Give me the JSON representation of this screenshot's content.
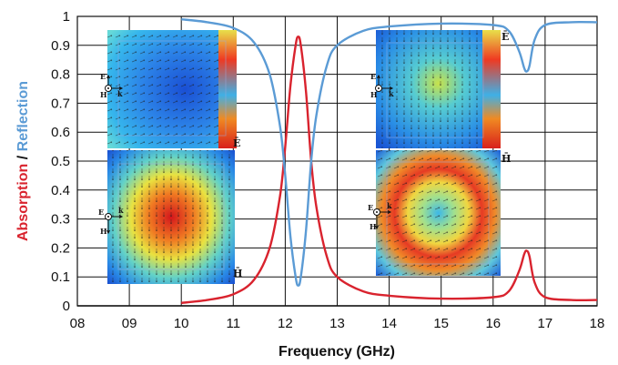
{
  "chart_data": {
    "type": "line",
    "xlabel": "Frequency (GHz)",
    "ylabel_parts": [
      "Absorption",
      " / ",
      "Reflection"
    ],
    "x_ticks": [
      "08",
      "09",
      "10",
      "11",
      "12",
      "13",
      "14",
      "15",
      "16",
      "17",
      "18"
    ],
    "y_ticks": [
      "0",
      "0.1",
      "0.2",
      "0.3",
      "0.4",
      "0.5",
      "0.6",
      "0.7",
      "0.8",
      "0.9",
      "1"
    ],
    "xlim": [
      8,
      18
    ],
    "ylim": [
      0,
      1
    ],
    "grid": true,
    "colors": {
      "absorption": "#d9232e",
      "reflection": "#5b9bd5",
      "divider": "#111111"
    },
    "series": [
      {
        "key": "absorption",
        "x": [
          10.0,
          10.5,
          11.0,
          11.4,
          11.7,
          11.9,
          12.0,
          12.1,
          12.2,
          12.25,
          12.3,
          12.4,
          12.5,
          12.6,
          12.8,
          13.0,
          13.5,
          14.0,
          15.0,
          16.0,
          16.3,
          16.5,
          16.6,
          16.65,
          16.7,
          16.8,
          17.0,
          17.5,
          18.0
        ],
        "y": [
          0.01,
          0.02,
          0.04,
          0.09,
          0.2,
          0.38,
          0.55,
          0.76,
          0.9,
          0.93,
          0.9,
          0.74,
          0.5,
          0.34,
          0.17,
          0.1,
          0.05,
          0.035,
          0.025,
          0.03,
          0.05,
          0.12,
          0.18,
          0.19,
          0.17,
          0.08,
          0.03,
          0.02,
          0.02
        ]
      },
      {
        "key": "reflection",
        "x": [
          10.0,
          10.5,
          11.0,
          11.4,
          11.7,
          11.9,
          12.0,
          12.1,
          12.2,
          12.25,
          12.3,
          12.4,
          12.5,
          12.6,
          12.8,
          13.0,
          13.5,
          14.0,
          15.0,
          16.0,
          16.3,
          16.5,
          16.6,
          16.65,
          16.7,
          16.8,
          17.0,
          17.5,
          18.0
        ],
        "y": [
          0.99,
          0.98,
          0.96,
          0.91,
          0.8,
          0.62,
          0.45,
          0.24,
          0.1,
          0.07,
          0.1,
          0.26,
          0.5,
          0.66,
          0.83,
          0.9,
          0.95,
          0.965,
          0.975,
          0.97,
          0.95,
          0.88,
          0.82,
          0.81,
          0.83,
          0.92,
          0.97,
          0.98,
          0.98
        ]
      }
    ]
  },
  "insets": {
    "e_symbol": "E",
    "h_symbol": "H",
    "k_symbol": "k",
    "e_vec_label": "Ē",
    "h_vec_label": "H̄"
  }
}
